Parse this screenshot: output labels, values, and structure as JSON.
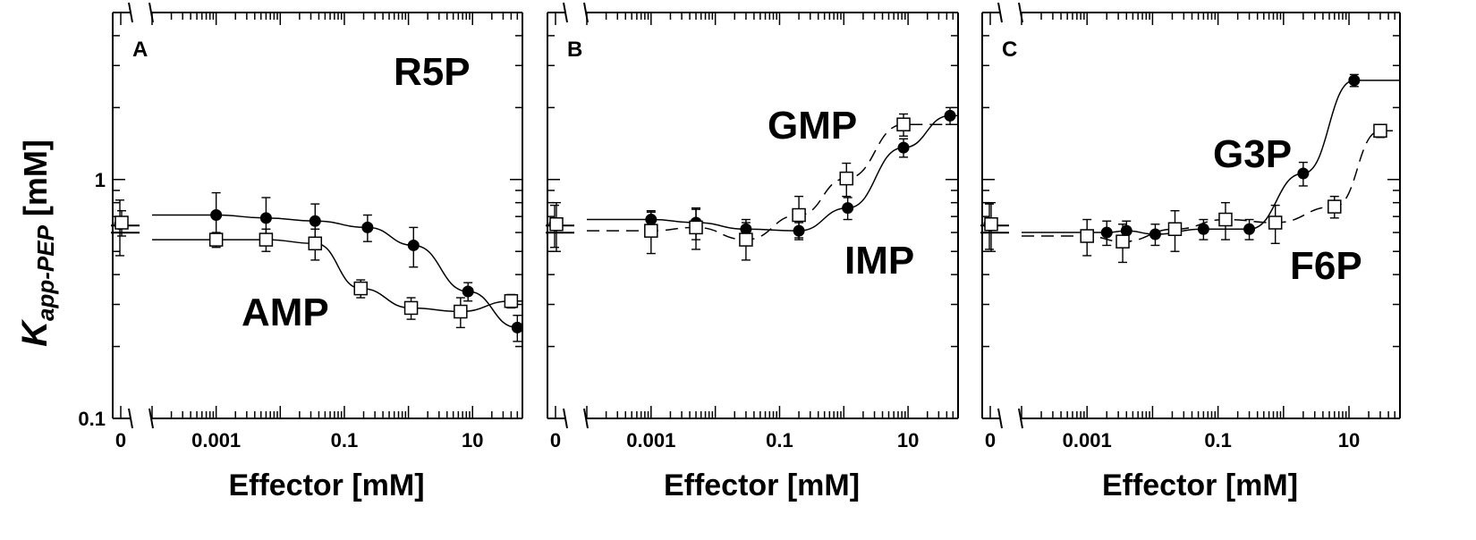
{
  "figure": {
    "y_label_main": "K",
    "y_label_sub": "app-PEP",
    "y_label_unit": " [mM]"
  },
  "chart_data": [
    {
      "type": "scatter",
      "panel": "A",
      "xlabel": "Effector [mM]",
      "ylabel": "K app-PEP [mM]",
      "xscale": "log",
      "yscale": "log",
      "xlim": [
        0.0001,
        60
      ],
      "ylim": [
        0.1,
        5
      ],
      "x_ticks": [
        {
          "v": 0.001,
          "label": "0.001"
        },
        {
          "v": 0.1,
          "label": "0.1"
        },
        {
          "v": 10,
          "label": "10"
        }
      ],
      "x_zero_label": "0",
      "y_ticks": [
        {
          "v": 0.1,
          "label": "0.1"
        },
        {
          "v": 1,
          "label": "1"
        }
      ],
      "series": [
        {
          "name": "R5P",
          "marker": "filled-circle",
          "curve": "solid",
          "points": [
            {
              "x": 0.001,
              "y": 0.71,
              "err": 0.17
            },
            {
              "x": 0.006,
              "y": 0.69,
              "err": 0.15
            },
            {
              "x": 0.035,
              "y": 0.67,
              "err": 0.12
            },
            {
              "x": 0.23,
              "y": 0.63,
              "err": 0.08
            },
            {
              "x": 1.2,
              "y": 0.53,
              "err": 0.1
            },
            {
              "x": 8.5,
              "y": 0.34,
              "err": 0.03
            },
            {
              "x": 50,
              "y": 0.24,
              "err": 0.03
            }
          ],
          "zero_point": {
            "y": 0.65,
            "err": 0.17
          }
        },
        {
          "name": "AMP",
          "marker": "open-square",
          "curve": "solid",
          "points": [
            {
              "x": 0.001,
              "y": 0.56,
              "err": 0.04
            },
            {
              "x": 0.006,
              "y": 0.56,
              "err": 0.06
            },
            {
              "x": 0.035,
              "y": 0.54,
              "err": 0.08
            },
            {
              "x": 0.18,
              "y": 0.35,
              "err": 0.03
            },
            {
              "x": 1.1,
              "y": 0.29,
              "err": 0.03
            },
            {
              "x": 6.5,
              "y": 0.28,
              "err": 0.04
            },
            {
              "x": 40,
              "y": 0.31,
              "err": 0.02
            }
          ],
          "zero_point": {
            "y": 0.66,
            "err": 0.08
          }
        }
      ],
      "annotations": [
        "A",
        "R5P",
        "AMP"
      ]
    },
    {
      "type": "scatter",
      "panel": "B",
      "xlabel": "Effector [mM]",
      "ylabel": "K app-PEP [mM]",
      "xscale": "log",
      "yscale": "log",
      "xlim": [
        0.0001,
        60
      ],
      "ylim": [
        0.1,
        5
      ],
      "x_ticks": [
        {
          "v": 0.001,
          "label": "0.001"
        },
        {
          "v": 0.1,
          "label": "0.1"
        },
        {
          "v": 10,
          "label": "10"
        }
      ],
      "x_zero_label": "0",
      "y_ticks": [
        {
          "v": 0.1,
          "label": "0.1"
        },
        {
          "v": 1,
          "label": "1"
        }
      ],
      "series": [
        {
          "name": "IMP",
          "marker": "filled-circle",
          "curve": "solid",
          "points": [
            {
              "x": 0.001,
              "y": 0.68,
              "err": 0.06
            },
            {
              "x": 0.005,
              "y": 0.66,
              "err": 0.1
            },
            {
              "x": 0.03,
              "y": 0.62,
              "err": 0.06
            },
            {
              "x": 0.2,
              "y": 0.61,
              "err": 0.05
            },
            {
              "x": 1.15,
              "y": 0.76,
              "err": 0.08
            },
            {
              "x": 8.5,
              "y": 1.36,
              "err": 0.12
            },
            {
              "x": 45,
              "y": 1.85,
              "err": 0.15
            }
          ],
          "zero_point": {
            "y": 0.65,
            "err": 0.13
          }
        },
        {
          "name": "GMP",
          "marker": "open-square",
          "curve": "dashed",
          "points": [
            {
              "x": 0.001,
              "y": 0.61,
              "err": 0.12
            },
            {
              "x": 0.005,
              "y": 0.63,
              "err": 0.12
            },
            {
              "x": 0.03,
              "y": 0.56,
              "err": 0.1
            },
            {
              "x": 0.2,
              "y": 0.71,
              "err": 0.14
            },
            {
              "x": 1.1,
              "y": 1.01,
              "err": 0.16
            },
            {
              "x": 8.5,
              "y": 1.7,
              "err": 0.18
            }
          ],
          "zero_point": {
            "y": 0.65,
            "err": 0.15
          }
        }
      ],
      "annotations": [
        "B",
        "GMP",
        "IMP"
      ]
    },
    {
      "type": "scatter",
      "panel": "C",
      "xlabel": "Effector [mM]",
      "ylabel": "K app-PEP [mM]",
      "xscale": "log",
      "yscale": "log",
      "xlim": [
        0.0001,
        60
      ],
      "ylim": [
        0.1,
        5
      ],
      "x_ticks": [
        {
          "v": 0.001,
          "label": "0.001"
        },
        {
          "v": 0.1,
          "label": "0.1"
        },
        {
          "v": 10,
          "label": "10"
        }
      ],
      "x_zero_label": "0",
      "y_ticks": [
        {
          "v": 0.1,
          "label": "0.1"
        },
        {
          "v": 1,
          "label": "1"
        }
      ],
      "series": [
        {
          "name": "G3P",
          "marker": "filled-circle",
          "curve": "solid",
          "points": [
            {
              "x": 0.002,
              "y": 0.6,
              "err": 0.07
            },
            {
              "x": 0.004,
              "y": 0.61,
              "err": 0.06
            },
            {
              "x": 0.011,
              "y": 0.59,
              "err": 0.06
            },
            {
              "x": 0.06,
              "y": 0.62,
              "err": 0.06
            },
            {
              "x": 0.3,
              "y": 0.62,
              "err": 0.06
            },
            {
              "x": 2.0,
              "y": 1.06,
              "err": 0.12
            },
            {
              "x": 12,
              "y": 2.6,
              "err": 0.15
            }
          ],
          "zero_point": {
            "y": 0.65,
            "err": 0.14
          }
        },
        {
          "name": "F6P",
          "marker": "open-square",
          "curve": "dashed",
          "points": [
            {
              "x": 0.001,
              "y": 0.58,
              "err": 0.1
            },
            {
              "x": 0.0035,
              "y": 0.55,
              "err": 0.1
            },
            {
              "x": 0.022,
              "y": 0.62,
              "err": 0.12
            },
            {
              "x": 0.13,
              "y": 0.68,
              "err": 0.12
            },
            {
              "x": 0.75,
              "y": 0.66,
              "err": 0.12
            },
            {
              "x": 6.0,
              "y": 0.77,
              "err": 0.08
            },
            {
              "x": 30,
              "y": 1.6,
              "err": 0.1
            }
          ],
          "zero_point": {
            "y": 0.65,
            "err": 0.15
          }
        }
      ],
      "annotations": [
        "C",
        "G3P",
        "F6P"
      ]
    }
  ]
}
